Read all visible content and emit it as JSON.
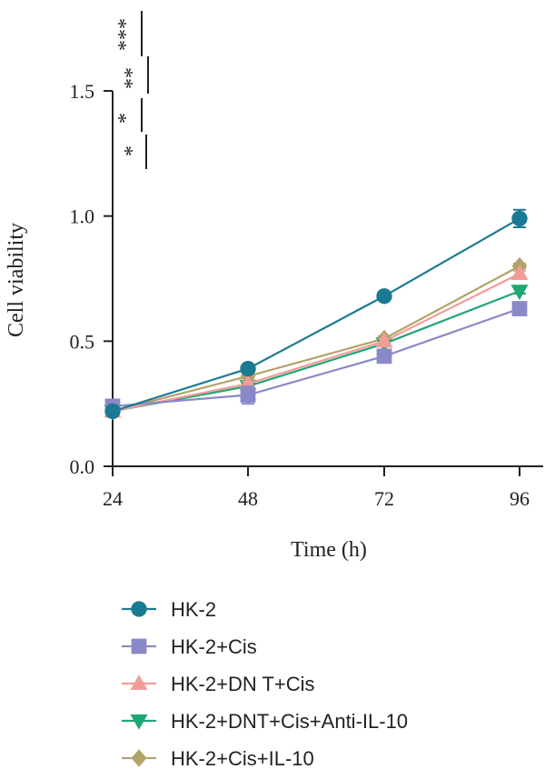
{
  "chart_data": {
    "type": "line",
    "title": "",
    "xlabel": "Time (h)",
    "ylabel": "Cell viability",
    "x": [
      24,
      48,
      72,
      96
    ],
    "x_ticks": [
      "24",
      "48",
      "72",
      "96"
    ],
    "y_ticks": [
      "0.0",
      "0.5",
      "1.0",
      "1.5"
    ],
    "ylim": [
      0,
      1.5
    ],
    "grid": false,
    "legend_position": "bottom",
    "series": [
      {
        "name": "HK-2",
        "marker": "circle",
        "color": "#1b7a93",
        "values": [
          0.22,
          0.39,
          0.68,
          0.99
        ],
        "errors": [
          0.0,
          0.015,
          0.01,
          0.035
        ]
      },
      {
        "name": "HK-2+Cis",
        "marker": "square",
        "color": "#8a89c8",
        "values": [
          0.24,
          0.285,
          0.44,
          0.63
        ],
        "errors": [
          0.0,
          0.035,
          0.01,
          0.02
        ]
      },
      {
        "name": "HK-2+DN T+Cis",
        "marker": "triangle-up",
        "color": "#f29c98",
        "values": [
          0.22,
          0.33,
          0.5,
          0.77
        ],
        "errors": [
          0.0,
          0.01,
          0.01,
          0.01
        ]
      },
      {
        "name": "HK-2+DNT+Cis+Anti-IL-10",
        "marker": "triangle-down",
        "color": "#1fa672",
        "values": [
          0.22,
          0.32,
          0.49,
          0.7
        ],
        "errors": [
          0.0,
          0.01,
          0.01,
          0.01
        ]
      },
      {
        "name": "HK-2+Cis+IL-10",
        "marker": "diamond",
        "color": "#b2a36a",
        "values": [
          0.22,
          0.36,
          0.51,
          0.8
        ],
        "errors": [
          0.0,
          0.01,
          0.01,
          0.01
        ]
      }
    ],
    "significance": [
      "***",
      "**",
      "*",
      "*"
    ]
  }
}
